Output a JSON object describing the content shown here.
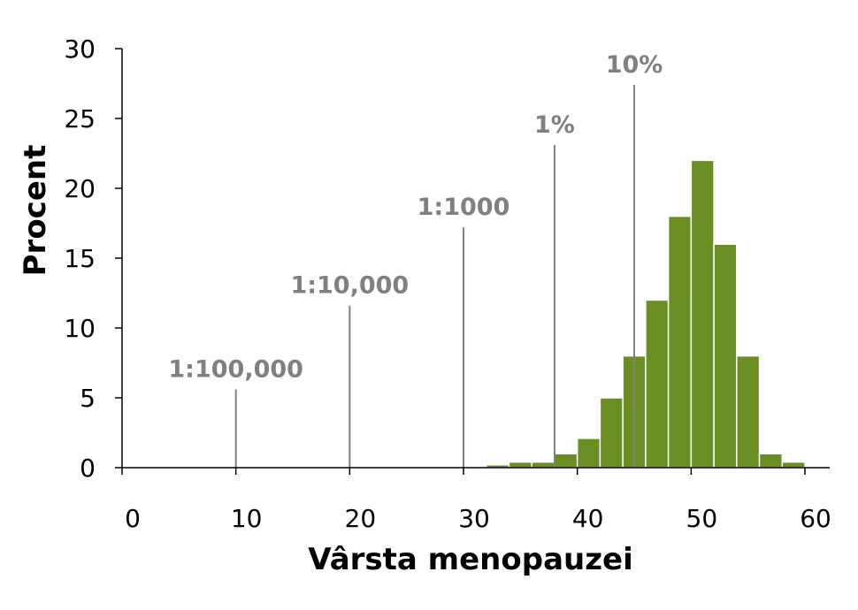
{
  "chart_data": {
    "type": "bar",
    "xlabel": "Vârsta menopauzei",
    "ylabel": "Procent",
    "xlim": [
      0,
      60
    ],
    "ylim": [
      0,
      30
    ],
    "x_ticks": [
      "0",
      "10",
      "20",
      "30",
      "40",
      "50",
      "60"
    ],
    "y_ticks": [
      "0",
      "5",
      "10",
      "15",
      "20",
      "25",
      "30"
    ],
    "bar_width": 2,
    "bar_color": "#6B8E23",
    "bins_start": [
      32,
      34,
      36,
      38,
      40,
      42,
      44,
      46,
      48,
      50,
      52,
      54,
      56,
      58
    ],
    "values": [
      0.2,
      0.4,
      0.4,
      1,
      2.1,
      5,
      8,
      12,
      18,
      22,
      16,
      8,
      1,
      0.4
    ],
    "marker_color": "#808080",
    "markers": [
      {
        "label": "1:100,000",
        "x": 10,
        "height": 5.6
      },
      {
        "label": "1:10,000",
        "x": 20,
        "height": 11.6
      },
      {
        "label": "1:1000",
        "x": 30,
        "height": 17.2
      },
      {
        "label": "1%",
        "x": 38,
        "height": 23.1
      },
      {
        "label": "10%",
        "x": 45,
        "height": 27.4
      }
    ]
  }
}
